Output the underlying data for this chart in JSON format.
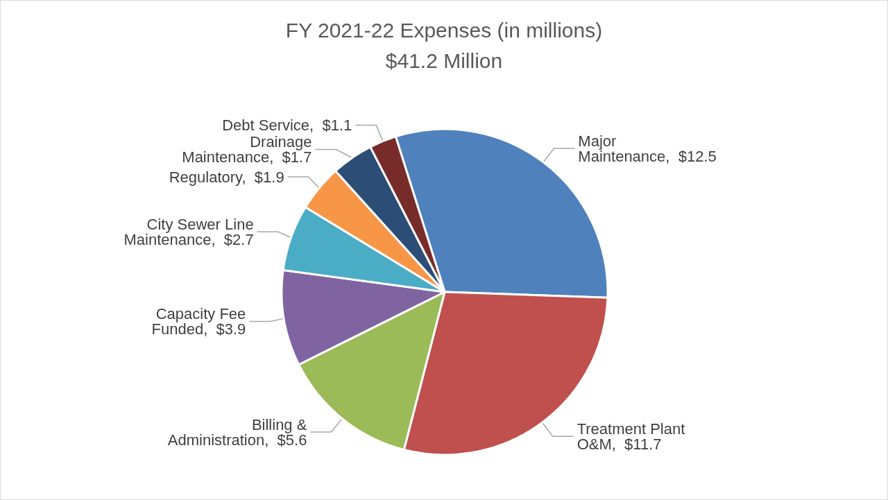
{
  "chart_data": {
    "type": "pie",
    "title": "FY 2021-22 Expenses (in millions)",
    "subtitle": "$41.2 Million",
    "categories": [
      "Major Maintenance",
      "Treatment Plant O&M",
      "Billing & Administration",
      "Capacity Fee Funded",
      "City Sewer Line Maintenance",
      "Regulatory",
      "Drainage Maintenance",
      "Debt Service"
    ],
    "values": [
      12.5,
      11.7,
      5.6,
      3.9,
      2.7,
      1.9,
      1.7,
      1.1
    ],
    "value_labels": [
      "$12.5",
      "$11.7",
      "$5.6",
      "$3.9",
      "$2.7",
      "$1.9",
      "$1.7",
      "$1.1"
    ],
    "colors": [
      "#4f81bd",
      "#c0504d",
      "#9bbb59",
      "#8064a2",
      "#4bacc6",
      "#f79646",
      "#2c4d75",
      "#772c2a"
    ]
  }
}
